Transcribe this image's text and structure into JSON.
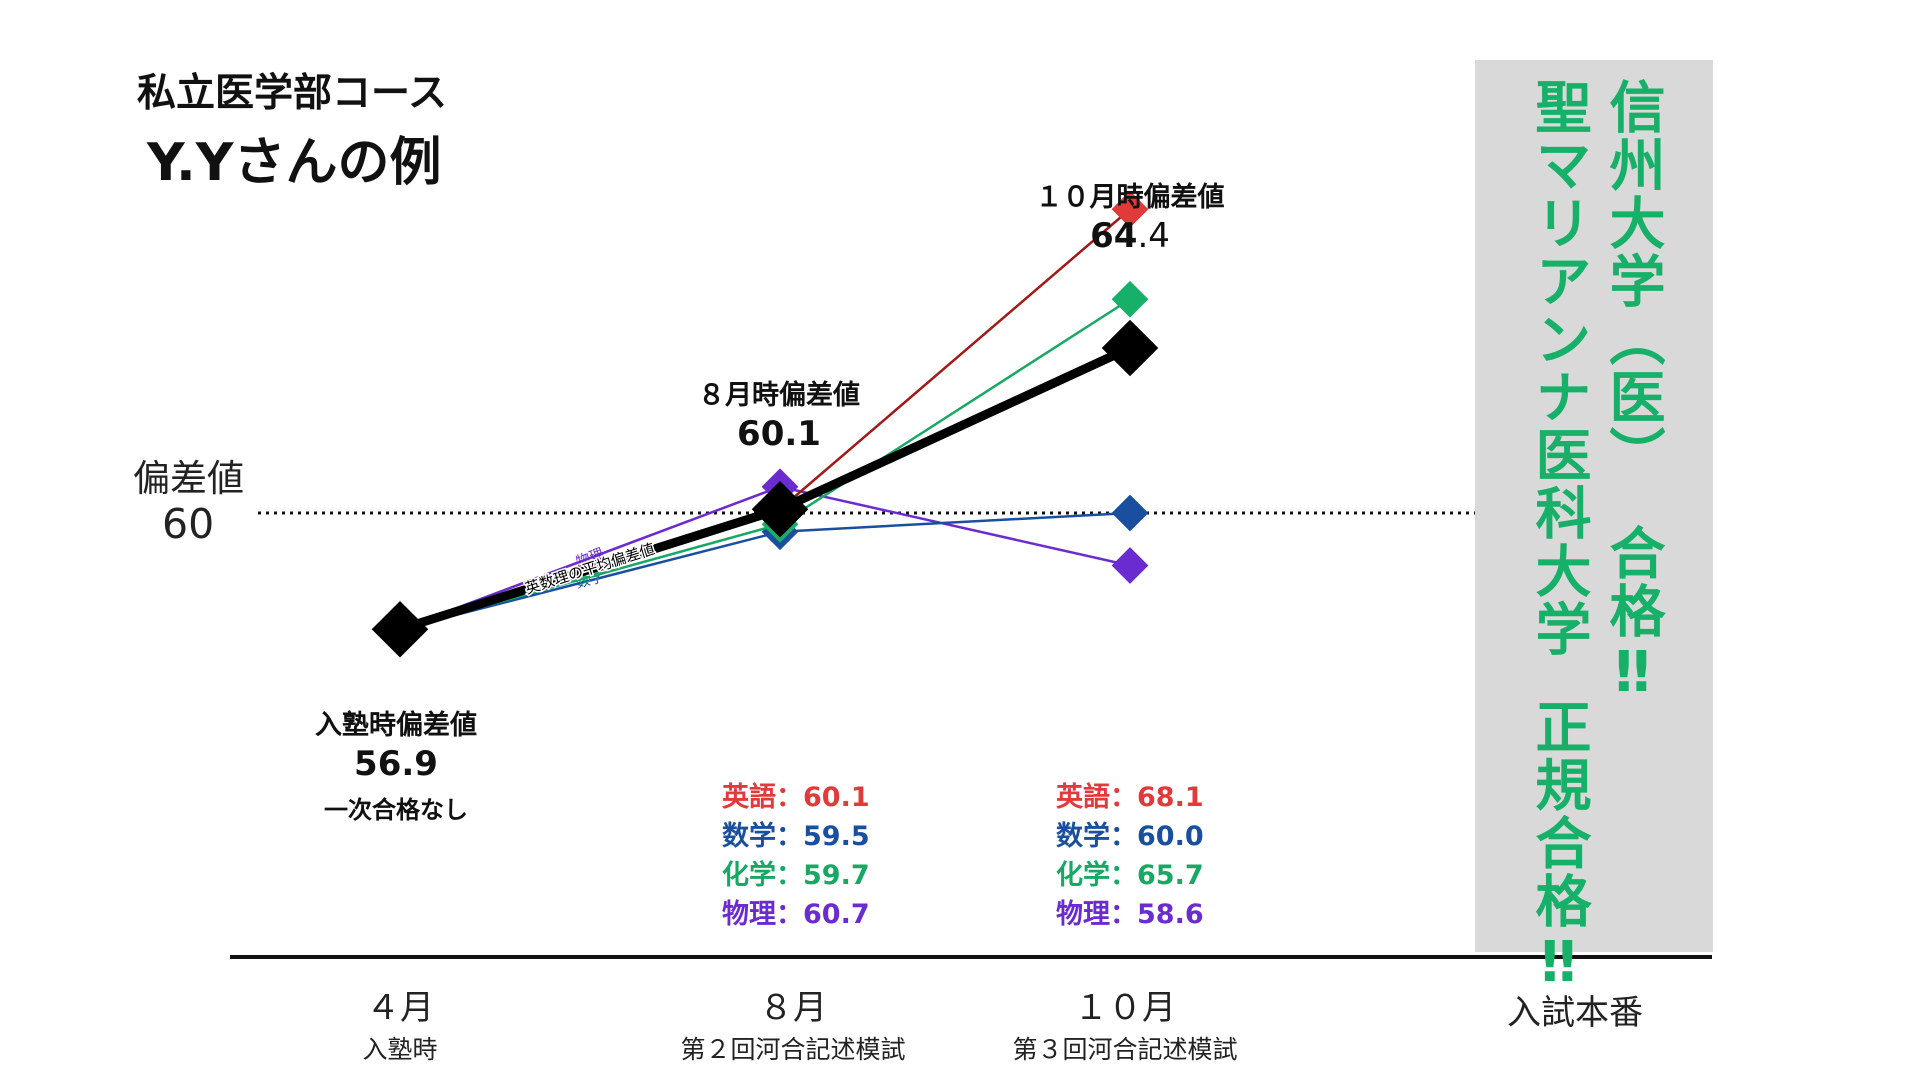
{
  "heading": {
    "course": "私立医学部コース",
    "student": "Y.Yさんの例"
  },
  "y_reference": {
    "label": "偏差値",
    "value": "60"
  },
  "annotations": {
    "april": {
      "caption": "入塾時偏差値",
      "value": "56.9",
      "note": "一次合格なし"
    },
    "august": {
      "caption": "８月時偏差値",
      "value": "60.1"
    },
    "october": {
      "caption": "１０月時偏差値",
      "value_main": "64",
      "value_dec": ".4"
    }
  },
  "subject_scores": {
    "august": [
      {
        "text": "英語：60.1",
        "color": "#e03a3a"
      },
      {
        "text": "数学：59.5",
        "color": "#1a4fa0"
      },
      {
        "text": "化学：59.7",
        "color": "#17a864"
      },
      {
        "text": "物理：60.7",
        "color": "#6a2bd0"
      }
    ],
    "october": [
      {
        "text": "英語：68.1",
        "color": "#e03a3a"
      },
      {
        "text": "数学：60.0",
        "color": "#1a4fa0"
      },
      {
        "text": "化学：65.7",
        "color": "#17a864"
      },
      {
        "text": "物理：58.6",
        "color": "#6a2bd0"
      }
    ]
  },
  "x_axis": [
    {
      "main": "４月",
      "sub": "入塾時"
    },
    {
      "main": "８月",
      "sub": "第２回河合記述模試"
    },
    {
      "main": "１０月",
      "sub": "第３回河合記述模試"
    },
    {
      "main": "入試本番",
      "sub": ""
    }
  ],
  "result": {
    "line1": "信州大学（医）",
    "line1_tail": "合格‼",
    "line2": "聖マリアンナ医科大学",
    "line2_tail": "正規合格‼",
    "color": "#17b068",
    "background": "#d9d9d9"
  },
  "chart_data": {
    "type": "line",
    "x": [
      "４月",
      "８月",
      "１０月"
    ],
    "ylim": [
      53,
      70
    ],
    "reference_line": 60,
    "series": [
      {
        "name": "英語",
        "values": [
          56.9,
          60.1,
          68.1
        ],
        "color": "#e03a3a",
        "line_color": "#a31818"
      },
      {
        "name": "数学",
        "values": [
          56.9,
          59.5,
          60.0
        ],
        "color": "#1a4fa0",
        "line_color": "#1a4fa0"
      },
      {
        "name": "化学",
        "values": [
          56.9,
          59.7,
          65.7
        ],
        "color": "#17b068",
        "line_color": "#17a864"
      },
      {
        "name": "物理",
        "values": [
          56.9,
          60.7,
          58.6
        ],
        "color": "#6a2bd0",
        "line_color": "#6a2bd0"
      },
      {
        "name": "英数理の平均偏差値",
        "values": [
          56.9,
          60.1,
          64.4
        ],
        "color": "#000000",
        "line_color": "#000000"
      }
    ]
  }
}
